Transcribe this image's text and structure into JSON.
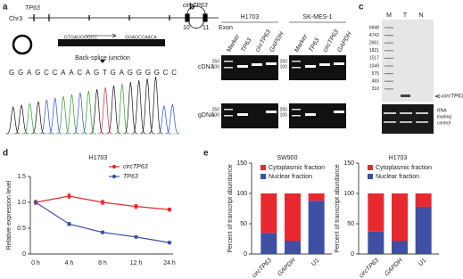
{
  "panel_labels": {
    "a": "a",
    "b": "b",
    "c": "c"
  },
  "panel_a": {
    "gene": "TP63",
    "chromosome": "Chr3",
    "circ": "circTP63",
    "exon_numbers": [
      "10",
      "11"
    ],
    "exon_label": "Exon",
    "junction": "Back-splice junction",
    "sequence": "GGAGCCAACAGTGAGGGGCC",
    "primer_left": "GTGAGGGGCC",
    "primer_right": "GGAGCCAACA"
  },
  "panel_b": {
    "cell_lines": [
      "H1703",
      "SK-MES-1"
    ],
    "lanes": [
      "Marker",
      "TP63",
      "circTP63",
      "GAPDH"
    ],
    "rows": [
      "cDNA",
      "gDNA"
    ],
    "marker_sizes": [
      "250",
      "100"
    ]
  },
  "panel_c": {
    "lanes": [
      "M",
      "T",
      "N"
    ],
    "ladder": [
      "6948",
      "4742",
      "2661",
      "1821",
      "1517",
      "1049",
      "575",
      "483",
      "310"
    ],
    "band_label": "circTP63",
    "control_label": [
      "RNA",
      "loading",
      "control"
    ]
  },
  "chart_data": [
    {
      "type": "line",
      "label": "d",
      "title": "H1703",
      "y_label": "Relative expression level",
      "categories": [
        "0 h",
        "4 h",
        "8 h",
        "12 h",
        "24 h"
      ],
      "series": [
        {
          "name": "circTP63",
          "color": "#e8292f",
          "italic": true,
          "values": [
            1.0,
            1.12,
            1.0,
            0.92,
            0.86
          ],
          "errors": [
            0.04,
            0.05,
            0.04,
            0.04,
            0.03
          ]
        },
        {
          "name": "TP63",
          "color": "#3f4fa3",
          "italic": true,
          "values": [
            1.0,
            0.58,
            0.42,
            0.33,
            0.22
          ],
          "errors": [
            0.02,
            0.03,
            0.02,
            0.02,
            0.02
          ]
        }
      ],
      "ylim": [
        0,
        1.5
      ],
      "yticks": [
        0,
        0.5,
        {
          "value": 1,
          "label": "1.0"
        },
        1.5
      ]
    },
    {
      "type": "stacked_bar",
      "label": "e",
      "title": "SW900",
      "y_label": "Percent of transcript abundance",
      "categories": [
        "circTP63",
        "GAPDH",
        "U1"
      ],
      "italic": [
        true,
        true,
        false
      ],
      "series": [
        {
          "name": "Cytoplasmic fraction",
          "color": "#e8292f",
          "values": [
            65,
            78,
            12
          ]
        },
        {
          "name": "Nuclear fraction",
          "color": "#3f4fa3",
          "values": [
            35,
            22,
            88
          ]
        }
      ],
      "ylim": [
        0,
        150
      ],
      "yticks": [
        0,
        50,
        100,
        150
      ]
    },
    {
      "type": "stacked_bar",
      "title": "H1703",
      "y_label": "Percent of transcript abundance",
      "categories": [
        "circTP63",
        "GAPDH",
        "U1"
      ],
      "italic": [
        true,
        true,
        false
      ],
      "series": [
        {
          "name": "Cytoplasmic fraction",
          "color": "#e8292f",
          "values": [
            63,
            78,
            22
          ]
        },
        {
          "name": "Nuclear fraction",
          "color": "#3f4fa3",
          "values": [
            37,
            22,
            78
          ]
        }
      ],
      "ylim": [
        0,
        150
      ],
      "yticks": [
        0,
        50,
        100,
        150
      ]
    }
  ]
}
